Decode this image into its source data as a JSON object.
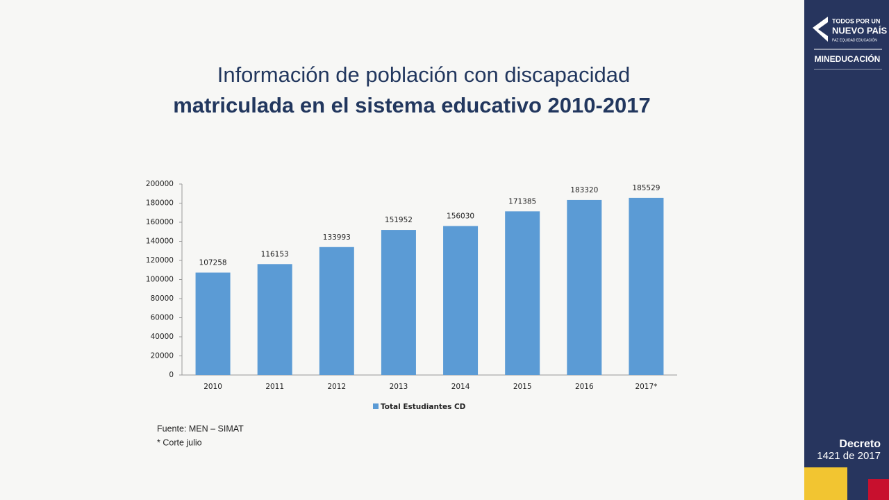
{
  "chart_data": {
    "type": "bar",
    "title": "Información de población con discapacidad",
    "subtitle": "matriculada en el sistema educativo 2010-2017",
    "categories": [
      "2010",
      "2011",
      "2012",
      "2013",
      "2014",
      "2015",
      "2016",
      "2017*"
    ],
    "series": [
      {
        "name": "Total Estudiantes CD",
        "color": "#5b9bd5",
        "values": [
          107258,
          116153,
          133993,
          151952,
          156030,
          171385,
          183320,
          185529
        ]
      }
    ],
    "ylim": [
      0,
      200000
    ],
    "yticks": [
      0,
      20000,
      40000,
      60000,
      80000,
      100000,
      120000,
      140000,
      160000,
      180000,
      200000
    ],
    "legend": "bottom",
    "notes": [
      "Fuente: MEN – SIMAT",
      "* Corte julio"
    ]
  },
  "sidebar": {
    "logo_top": "TODOS POR UN",
    "logo_main": "NUEVO PAÍS",
    "logo_tagline": "PAZ  EQUIDAD  EDUCACIÓN",
    "ministry": "MINEDUCACIÓN",
    "decree": "Decreto",
    "decree_number": "1421 de 2017"
  }
}
